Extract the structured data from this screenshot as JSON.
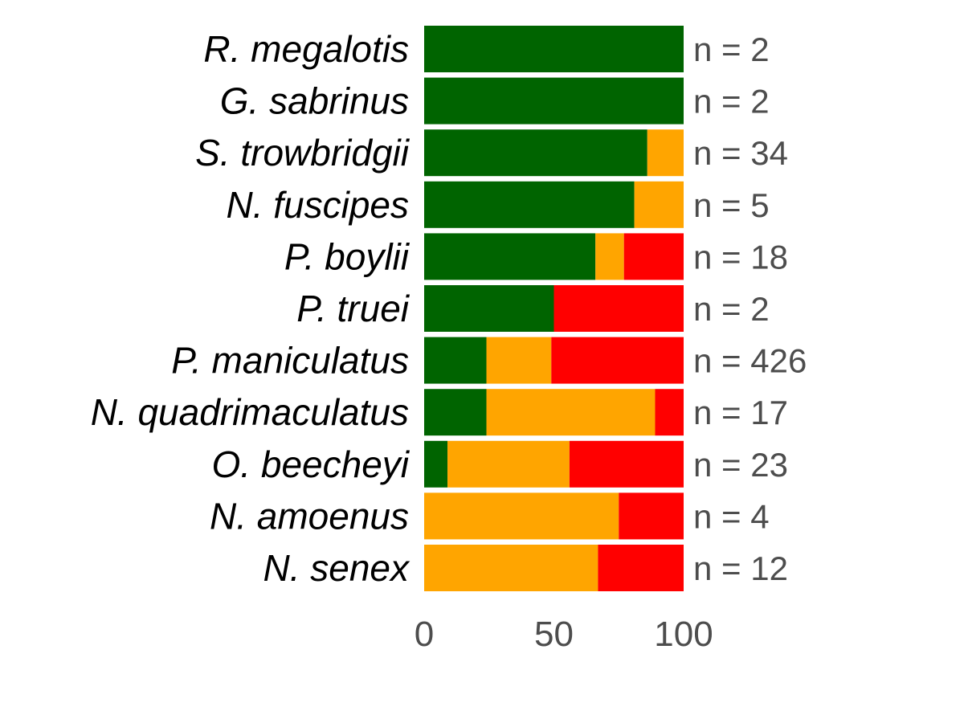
{
  "chart_data": {
    "type": "bar",
    "orientation": "horizontal",
    "stacked": true,
    "categories": [
      "R. megalotis",
      "G. sabrinus",
      "S. trowbridgii",
      "N. fuscipes",
      "P. boylii",
      "P. truei",
      "P. maniculatus",
      "N. quadrimaculatus",
      "O. beecheyi",
      "N. amoenus",
      "N. senex"
    ],
    "series": [
      {
        "color": "#006400",
        "values": [
          100,
          100,
          86,
          81,
          66,
          50,
          24,
          24,
          9,
          0,
          0
        ]
      },
      {
        "color": "#FFA500",
        "values": [
          0,
          0,
          14,
          19,
          11,
          0,
          25,
          65,
          47,
          75,
          67
        ]
      },
      {
        "color": "#FF0000",
        "values": [
          0,
          0,
          0,
          0,
          23,
          50,
          51,
          11,
          44,
          25,
          33
        ]
      }
    ],
    "annotations": [
      "n =  2",
      "n =  2",
      "n =  34",
      "n =  5",
      "n =  18",
      "n =  2",
      "n =  426",
      "n =  17",
      "n =  23",
      "n =  4",
      "n =  12"
    ],
    "x_ticks": [
      "0",
      "50",
      "100"
    ],
    "xlim": [
      0,
      100
    ],
    "title": "",
    "xlabel": "",
    "ylabel": "",
    "grid": false,
    "legend": "none"
  }
}
